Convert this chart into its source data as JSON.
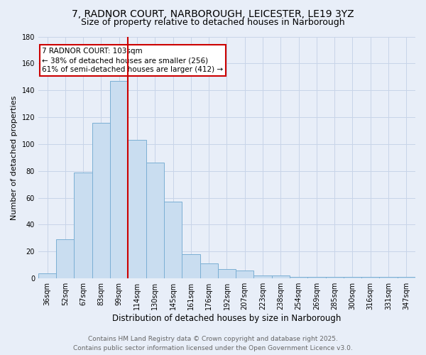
{
  "title": "7, RADNOR COURT, NARBOROUGH, LEICESTER, LE19 3YZ",
  "subtitle": "Size of property relative to detached houses in Narborough",
  "xlabel": "Distribution of detached houses by size in Narborough",
  "ylabel": "Number of detached properties",
  "categories": [
    "36sqm",
    "52sqm",
    "67sqm",
    "83sqm",
    "99sqm",
    "114sqm",
    "130sqm",
    "145sqm",
    "161sqm",
    "176sqm",
    "192sqm",
    "207sqm",
    "223sqm",
    "238sqm",
    "254sqm",
    "269sqm",
    "285sqm",
    "300sqm",
    "316sqm",
    "331sqm",
    "347sqm"
  ],
  "values": [
    4,
    29,
    79,
    116,
    147,
    103,
    86,
    57,
    18,
    11,
    7,
    6,
    2,
    2,
    1,
    1,
    1,
    1,
    1,
    1,
    1
  ],
  "bar_color": "#c9ddf0",
  "bar_edge_color": "#7bafd4",
  "vline_x": 4.5,
  "vline_color": "#cc0000",
  "annotation_text": "7 RADNOR COURT: 103sqm\n← 38% of detached houses are smaller (256)\n61% of semi-detached houses are larger (412) →",
  "annotation_box_color": "#ffffff",
  "annotation_box_edge": "#cc0000",
  "ylim": [
    0,
    180
  ],
  "yticks": [
    0,
    20,
    40,
    60,
    80,
    100,
    120,
    140,
    160,
    180
  ],
  "grid_color": "#c8d4e8",
  "bg_color": "#e8eef8",
  "footer_line1": "Contains HM Land Registry data © Crown copyright and database right 2025.",
  "footer_line2": "Contains public sector information licensed under the Open Government Licence v3.0.",
  "title_fontsize": 10,
  "subtitle_fontsize": 9,
  "xlabel_fontsize": 8.5,
  "ylabel_fontsize": 8,
  "tick_fontsize": 7,
  "annot_fontsize": 7.5,
  "footer_fontsize": 6.5
}
